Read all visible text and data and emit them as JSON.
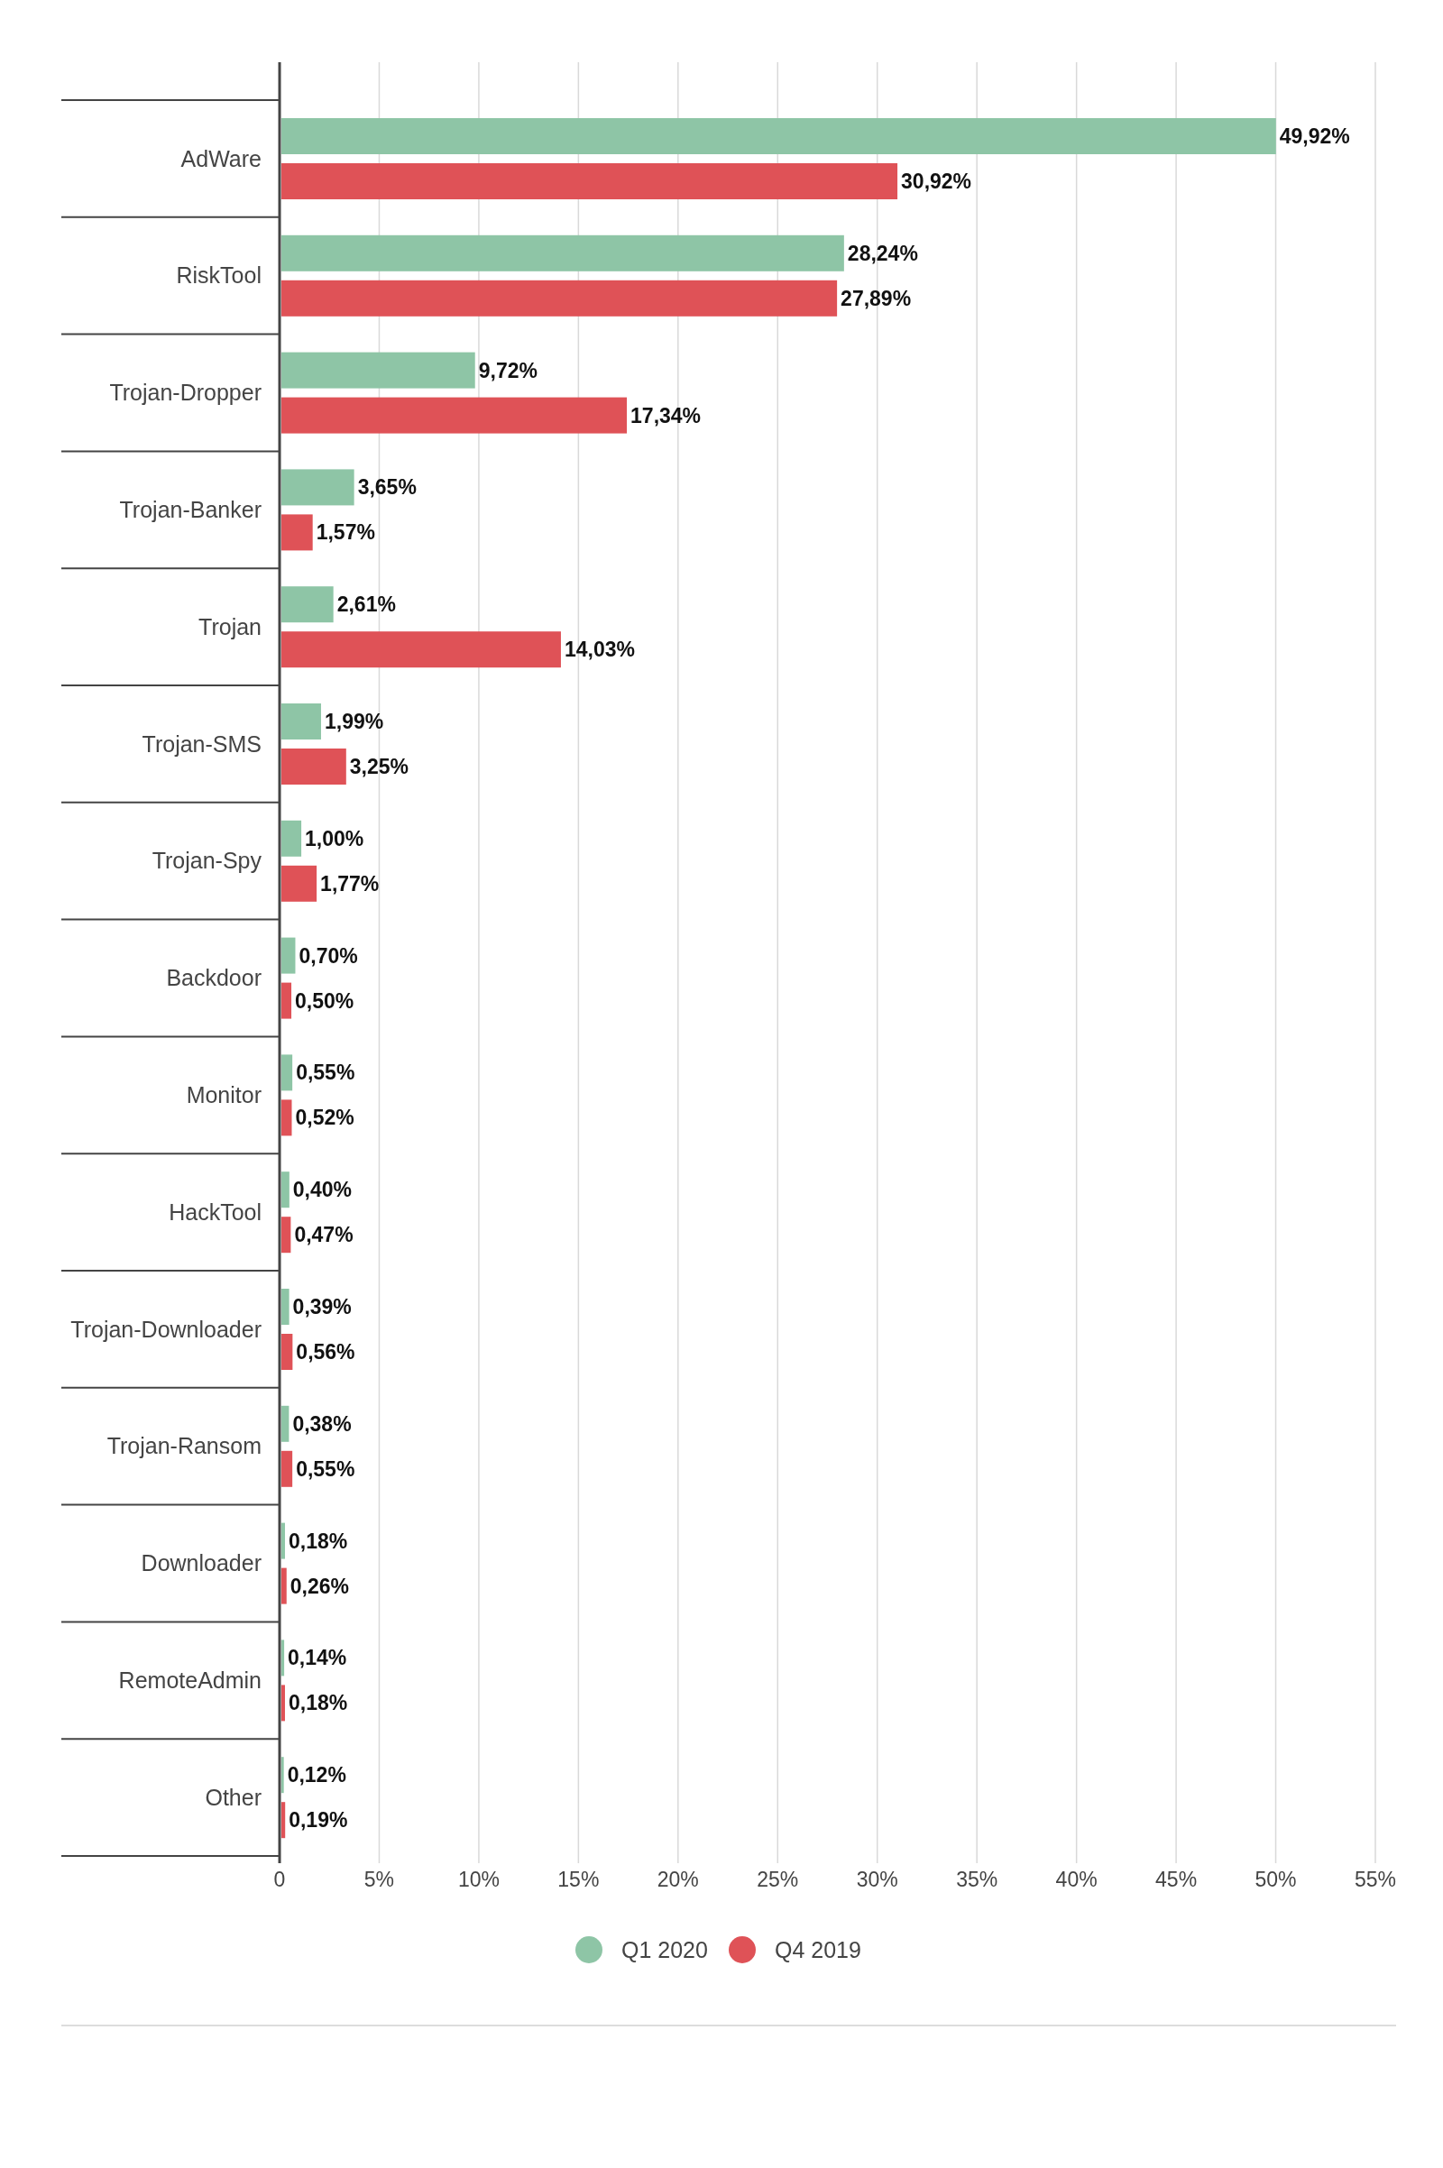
{
  "chart_data": {
    "type": "bar",
    "orientation": "horizontal",
    "categories": [
      "AdWare",
      "RiskTool",
      "Trojan-Dropper",
      "Trojan-Banker",
      "Trojan",
      "Trojan-SMS",
      "Trojan-Spy",
      "Backdoor",
      "Monitor",
      "HackTool",
      "Trojan-Downloader",
      "Trojan-Ransom",
      "Downloader",
      "RemoteAdmin",
      "Other"
    ],
    "series": [
      {
        "name": "Q1 2020",
        "color": "#8ec5a6",
        "values": [
          49.92,
          28.24,
          9.72,
          3.65,
          2.61,
          1.99,
          1.0,
          0.7,
          0.55,
          0.4,
          0.39,
          0.38,
          0.18,
          0.14,
          0.12
        ],
        "value_labels": [
          "49,92%",
          "28,24%",
          "9,72%",
          "3,65%",
          "2,61%",
          "1,99%",
          "1,00%",
          "0,70%",
          "0,55%",
          "0,40%",
          "0,39%",
          "0,38%",
          "0,18%",
          "0,14%",
          "0,12%"
        ]
      },
      {
        "name": "Q4 2019",
        "color": "#df5257",
        "values": [
          30.92,
          27.89,
          17.34,
          1.57,
          14.03,
          3.25,
          1.77,
          0.5,
          0.52,
          0.47,
          0.56,
          0.55,
          0.26,
          0.18,
          0.19
        ],
        "value_labels": [
          "30,92%",
          "27,89%",
          "17,34%",
          "1,57%",
          "14,03%",
          "3,25%",
          "1,77%",
          "0,50%",
          "0,52%",
          "0,47%",
          "0,56%",
          "0,55%",
          "0,26%",
          "0,18%",
          "0,19%"
        ]
      }
    ],
    "xlim": [
      0,
      55
    ],
    "xticks": [
      0,
      {
        "value": 5,
        "label": "5%"
      },
      {
        "value": 10,
        "label": "10%"
      },
      {
        "value": 15,
        "label": "15%"
      },
      {
        "value": 20,
        "label": "20%"
      },
      {
        "value": 25,
        "label": "25%"
      },
      {
        "value": 30,
        "label": "30%"
      },
      {
        "value": 35,
        "label": "35%"
      },
      {
        "value": 40,
        "label": "40%"
      },
      {
        "value": 45,
        "label": "45%"
      },
      {
        "value": 50,
        "label": "50%"
      },
      {
        "value": 55,
        "label": "55%"
      }
    ],
    "grid": "x",
    "legend": "bottom"
  }
}
